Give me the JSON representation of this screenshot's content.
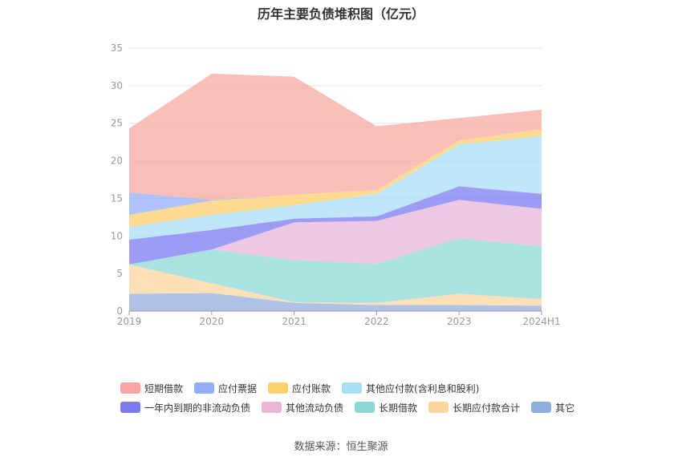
{
  "chart_data": {
    "type": "area",
    "title": "历年主要负债堆积图（亿元）",
    "categories": [
      "2019",
      "2020",
      "2021",
      "2022",
      "2023",
      "2024H1"
    ],
    "ylim": [
      0,
      35
    ],
    "yticks": [
      0,
      5,
      10,
      15,
      20,
      25,
      30,
      35
    ],
    "grid": true,
    "legend_position": "bottom",
    "source": "数据来源：恒生聚源",
    "series": [
      {
        "name": "其它",
        "color": "#92aedd",
        "values": [
          2.3,
          2.4,
          1.1,
          0.8,
          0.8,
          0.7
        ]
      },
      {
        "name": "长期应付款合计",
        "color": "#fcd5a0",
        "values": [
          3.9,
          1.3,
          0.1,
          0.3,
          1.5,
          0.9
        ]
      },
      {
        "name": "长期借款",
        "color": "#8dd7d7",
        "values": [
          0.0,
          4.5,
          5.6,
          5.2,
          7.4,
          7.0
        ]
      },
      {
        "name": "其他流动负债",
        "color": "#e8b5d8",
        "values": [
          0.0,
          0.0,
          5.0,
          5.7,
          5.1,
          5.0
        ]
      },
      {
        "name": "一年内到期的非流动负债",
        "color": "#7b7bf0",
        "values": [
          3.3,
          2.6,
          0.5,
          0.6,
          1.8,
          2.0
        ]
      },
      {
        "name": "其他应付款(含利息和股利)",
        "color": "#a9def8",
        "values": [
          1.7,
          2.0,
          1.8,
          3.0,
          5.6,
          7.7
        ]
      },
      {
        "name": "应付账款",
        "color": "#fcd06c",
        "values": [
          1.6,
          1.9,
          1.4,
          0.5,
          0.5,
          0.9
        ]
      },
      {
        "name": "应付票据",
        "color": "#94aef8",
        "values": [
          3.0,
          0.1,
          0.0,
          0.0,
          0.0,
          0.0
        ]
      },
      {
        "name": "短期借款",
        "color": "#f8a8a0",
        "values": [
          8.5,
          16.8,
          15.7,
          8.5,
          3.0,
          2.6
        ]
      }
    ]
  },
  "legend_rows": [
    [
      {
        "name": "短期借款",
        "color": "#f8a8a0"
      },
      {
        "name": "应付票据",
        "color": "#94aef8"
      },
      {
        "name": "应付账款",
        "color": "#fcd06c"
      },
      {
        "name": "其他应付款(含利息和股利)",
        "color": "#a9def8"
      }
    ],
    [
      {
        "name": "一年内到期的非流动负债",
        "color": "#7b7bf0"
      },
      {
        "name": "其他流动负债",
        "color": "#e8b5d8"
      },
      {
        "name": "长期借款",
        "color": "#8dd7d7"
      },
      {
        "name": "长期应付款合计",
        "color": "#fcd5a0"
      },
      {
        "name": "其它",
        "color": "#92aedd"
      }
    ]
  ]
}
